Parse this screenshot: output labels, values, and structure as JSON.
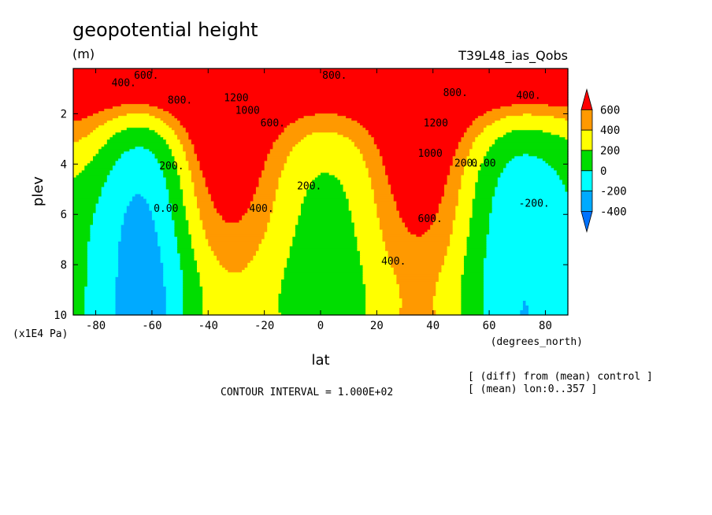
{
  "chart_data": {
    "type": "heatmap",
    "title": "geopotential height",
    "units": "(m)",
    "run_name": "T39L48_ias_Qobs",
    "xlabel": "lat",
    "xunits": "(degrees_north)",
    "ylabel": "plev",
    "yunits": "(x1E4 Pa)",
    "xlim": [
      -88,
      88
    ],
    "ylim": [
      10,
      0.2
    ],
    "x_ticks": [
      -80,
      -60,
      -40,
      -20,
      0,
      20,
      40,
      60,
      80
    ],
    "x_tick_labels": [
      "-80",
      "-60",
      "-40",
      "-20",
      "0",
      "20",
      "40",
      "60",
      "80"
    ],
    "y_ticks": [
      2,
      4,
      6,
      8,
      10
    ],
    "y_tick_labels": [
      "2",
      "4",
      "6",
      "8",
      "10"
    ],
    "contour_interval_text": "CONTOUR INTERVAL = 1.000E+02",
    "notes": [
      "[ (diff) from (mean) control ]",
      "[ (mean) lon:0..357 ]"
    ],
    "colorbar": {
      "levels": [
        -400,
        -200,
        0,
        200,
        400,
        600
      ],
      "labels": [
        "-400",
        "-200",
        "0",
        "200",
        "400",
        "600"
      ],
      "colors": [
        "#0072ff",
        "#00aaff",
        "#00ffff",
        "#00dd00",
        "#ffff00",
        "#ff9900",
        "#ff0000"
      ]
    },
    "field_description": "Approximate geopotential height difference (m) on latitude-pressure plane",
    "contour_labels": [
      {
        "text": "400.",
        "lat": -70,
        "p": 0.9
      },
      {
        "text": "600.",
        "lat": -62,
        "p": 0.6
      },
      {
        "text": "800.",
        "lat": -50,
        "p": 1.6
      },
      {
        "text": "1200",
        "lat": -30,
        "p": 1.5
      },
      {
        "text": "1000",
        "lat": -26,
        "p": 2.0
      },
      {
        "text": "600.",
        "lat": -17,
        "p": 2.5
      },
      {
        "text": "800.",
        "lat": 5,
        "p": 0.6
      },
      {
        "text": "200.",
        "lat": -4,
        "p": 5.0
      },
      {
        "text": "400.",
        "lat": -21,
        "p": 5.9
      },
      {
        "text": "200.",
        "lat": -53,
        "p": 4.2
      },
      {
        "text": "0.00",
        "lat": -55,
        "p": 5.9
      },
      {
        "text": "1200",
        "lat": 41,
        "p": 2.5
      },
      {
        "text": "1000",
        "lat": 39,
        "p": 3.7
      },
      {
        "text": "800.",
        "lat": 48,
        "p": 1.3
      },
      {
        "text": "600.",
        "lat": 39,
        "p": 6.3
      },
      {
        "text": "400.",
        "lat": 26,
        "p": 8.0
      },
      {
        "text": "400.",
        "lat": 74,
        "p": 1.4
      },
      {
        "text": "200.",
        "lat": 52,
        "p": 4.1
      },
      {
        "text": "0.00",
        "lat": 58,
        "p": 4.1
      },
      {
        "text": "-200.",
        "lat": 76,
        "p": 5.7
      }
    ]
  }
}
